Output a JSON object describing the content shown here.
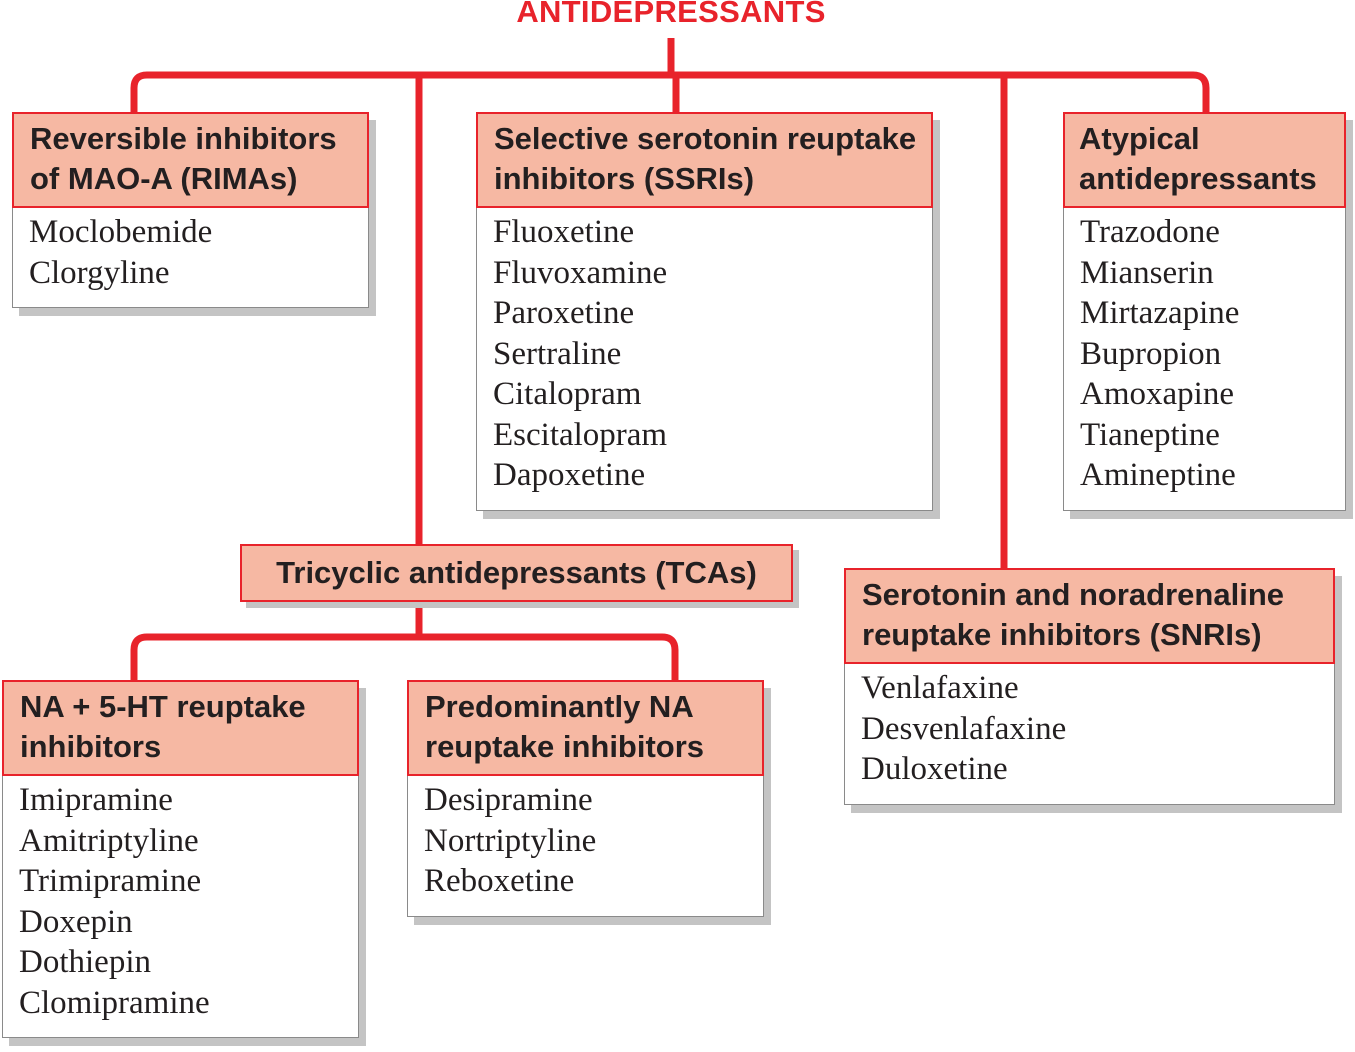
{
  "title": "ANTIDEPRESSANTS",
  "colors": {
    "line": "#e8232b",
    "header_fill": "#f6b8a3",
    "shadow": "#c4c4c4"
  },
  "categories": {
    "rimas": {
      "label": "Reversible inhibitors of MAO-A (RIMAs)",
      "drugs": [
        "Moclobemide",
        "Clorgyline"
      ]
    },
    "ssris": {
      "label": "Selective serotonin reuptake inhibitors (SSRIs)",
      "drugs": [
        "Fluoxetine",
        "Fluvoxamine",
        "Paroxetine",
        "Sertraline",
        "Citalopram",
        "Escitalopram",
        "Dapoxetine"
      ]
    },
    "atypical": {
      "label": "Atypical antidepressants",
      "drugs": [
        "Trazodone",
        "Mianserin",
        "Mirtazapine",
        "Bupropion",
        "Amoxapine",
        "Tianeptine",
        "Amineptine"
      ]
    },
    "tcas": {
      "label": "Tricyclic antidepressants (TCAs)"
    },
    "snris": {
      "label": "Serotonin and noradrenaline reuptake inhibitors (SNRIs)",
      "drugs": [
        "Venlafaxine",
        "Desvenlafaxine",
        "Duloxetine"
      ]
    },
    "na_5ht": {
      "label": "NA + 5-HT reuptake inhibitors",
      "drugs": [
        "Imipramine",
        "Amitriptyline",
        "Trimipramine",
        "Doxepin",
        "Dothiepin",
        "Clomipramine"
      ]
    },
    "predominantly_na": {
      "label": "Predominantly NA reuptake inhibitors",
      "drugs": [
        "Desipramine",
        "Nortriptyline",
        "Reboxetine"
      ]
    }
  }
}
